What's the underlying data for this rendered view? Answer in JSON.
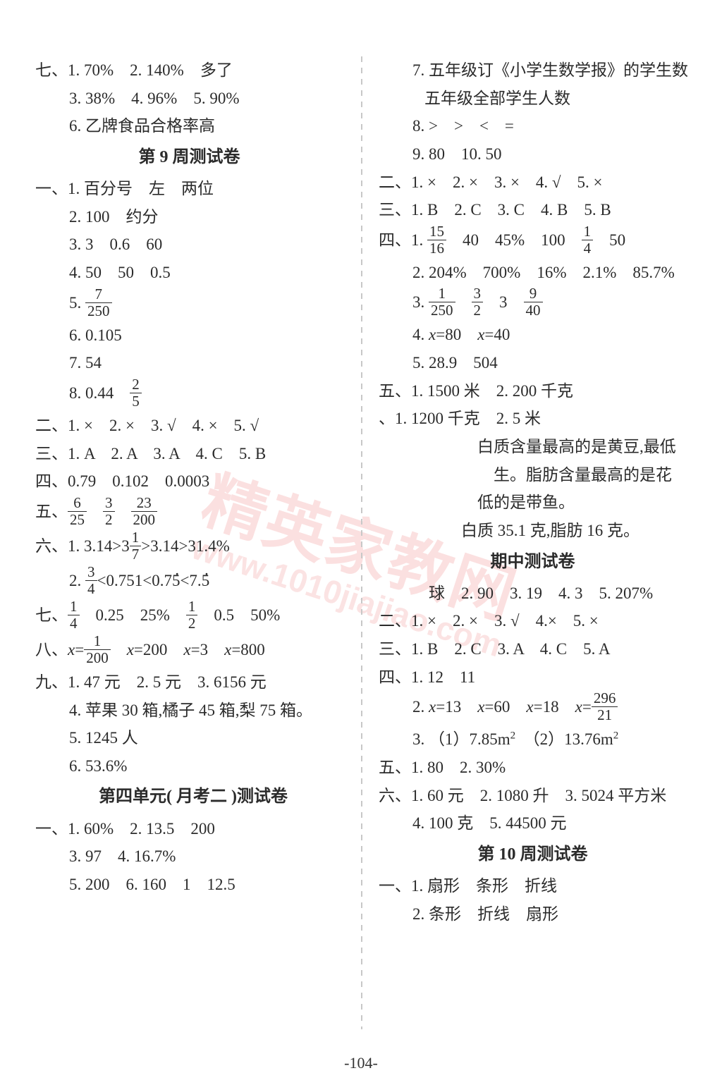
{
  "page_number": "-104-",
  "watermark_main": "精英家教网",
  "watermark_sub": "www.1010jiajiao.com",
  "left": {
    "lines": [
      {
        "cls": "indent0",
        "html": "七、1. 70%　2. 140%　多了"
      },
      {
        "cls": "indent1",
        "html": "3. 38%　4. 96%　5. 90%"
      },
      {
        "cls": "indent1",
        "html": "6. 乙牌食品合格率高"
      },
      {
        "cls": "heading",
        "html": "第 9 周测试卷"
      },
      {
        "cls": "indent0",
        "html": "一、1. 百分号　左　两位"
      },
      {
        "cls": "indent1",
        "html": "2. 100　约分"
      },
      {
        "cls": "indent1",
        "html": "3. 3　0.6　60"
      },
      {
        "cls": "indent1",
        "html": "4. 50　50　0.5"
      },
      {
        "cls": "indent1",
        "html": "5. <span class='frac'><span class='num'>7</span><span class='den'>250</span></span>"
      },
      {
        "cls": "indent1",
        "html": "6. 0.105"
      },
      {
        "cls": "indent1",
        "html": "7. 54"
      },
      {
        "cls": "indent1",
        "html": "8. 0.44　<span class='frac'><span class='num'>2</span><span class='den'>5</span></span>"
      },
      {
        "cls": "indent0",
        "html": "二、1. ×　2. ×　3. √　4. ×　5. √"
      },
      {
        "cls": "indent0",
        "html": "三、1. A　2. A　3. A　4. C　5. B"
      },
      {
        "cls": "indent0",
        "html": "四、0.79　0.102　0.0003"
      },
      {
        "cls": "indent0",
        "html": "五、<span class='frac'><span class='num'>6</span><span class='den'>25</span></span>　<span class='frac'><span class='num'>3</span><span class='den'>2</span></span>　<span class='frac'><span class='num'>23</span><span class='den'>200</span></span>"
      },
      {
        "cls": "indent0",
        "html": "六、1. 3.14&gt;3<span class='frac'><span class='num'>1</span><span class='den'>7</span></span>&gt;3.14&gt;31.4%"
      },
      {
        "cls": "indent1",
        "html": "2. <span class='frac'><span class='num'>3</span><span class='den'>4</span></span>&lt;0.751&lt;0.7<span class='dotover'>5</span>&lt;7.<span class='dotover'>5</span>"
      },
      {
        "cls": "indent0",
        "html": "七、<span class='frac'><span class='num'>1</span><span class='den'>4</span></span>　0.25　25%　<span class='frac'><span class='num'>1</span><span class='den'>2</span></span>　0.5　50%"
      },
      {
        "cls": "indent0",
        "html": "八、<i>x</i>=<span class='frac'><span class='num'>1</span><span class='den'>200</span></span>　<i>x</i>=200　<i>x</i>=3　<i>x</i>=800"
      },
      {
        "cls": "indent0",
        "html": "九、1. 47 元　2. 5 元　3. 6156 元"
      },
      {
        "cls": "indent1",
        "html": "4. 苹果 30 箱,橘子 45 箱,梨 75 箱。"
      },
      {
        "cls": "indent1",
        "html": "5. 1245 人"
      },
      {
        "cls": "indent1",
        "html": "6. 53.6%"
      },
      {
        "cls": "heading heading-left",
        "html": "第四单元( 月考二 )测试卷"
      },
      {
        "cls": "indent0",
        "html": "一、1. 60%　2. 13.5　200"
      },
      {
        "cls": "indent1",
        "html": "3. 97　4. 16.7%"
      },
      {
        "cls": "indent1",
        "html": "5. 200　6. 160　1　12.5"
      }
    ]
  },
  "right": {
    "lines": [
      {
        "cls": "indent1",
        "html": "7. 五年级订《小学生数学报》的学生数"
      },
      {
        "cls": "indent2",
        "html": "五年级全部学生人数"
      },
      {
        "cls": "indent1",
        "html": "8. &gt;　&gt;　&lt;　="
      },
      {
        "cls": "indent1",
        "html": "9. 80　10. 50"
      },
      {
        "cls": "indent0",
        "html": "二、1. ×　2. ×　3. ×　4. √　5. ×"
      },
      {
        "cls": "indent0",
        "html": "三、1. B　2. C　3. C　4. B　5. B"
      },
      {
        "cls": "indent0",
        "html": "四、1. <span class='frac'><span class='num'>15</span><span class='den'>16</span></span>　40　45%　100　<span class='frac'><span class='num'>1</span><span class='den'>4</span></span>　50"
      },
      {
        "cls": "indent1",
        "html": "2. 204%　700%　16%　2.1%　85.7%"
      },
      {
        "cls": "indent1",
        "html": "3. <span class='frac'><span class='num'>1</span><span class='den'>250</span></span>　<span class='frac'><span class='num'>3</span><span class='den'>2</span></span>　3　<span class='frac'><span class='num'>9</span><span class='den'>40</span></span>"
      },
      {
        "cls": "indent1",
        "html": "4. <i>x</i>=80　<i>x</i>=40"
      },
      {
        "cls": "indent1",
        "html": "5. 28.9　504"
      },
      {
        "cls": "indent0",
        "html": "五、1. 1500 米　2. 200 千克"
      },
      {
        "cls": "indent0",
        "html": "、1. 1200 千克　2. 5 米"
      },
      {
        "cls": "indent1",
        "html": "　　　　白质含量最高的是黄豆,最低"
      },
      {
        "cls": "indent1",
        "html": "　　　　　生。脂肪含量最高的是花"
      },
      {
        "cls": "indent1",
        "html": "　　　　低的是带鱼。"
      },
      {
        "cls": "indent1",
        "html": "　　　白质 35.1 克,脂肪 16 克。"
      },
      {
        "cls": "heading",
        "html": "期中测试卷"
      },
      {
        "cls": "indent1",
        "html": "　球　2. 90　3. 19　4. 3　5. 207%"
      },
      {
        "cls": "indent0",
        "html": "二、1. ×　2. ×　3. √　4.×　5. ×"
      },
      {
        "cls": "indent0",
        "html": "三、1. B　2. C　3. A　4. C　5. A"
      },
      {
        "cls": "indent0",
        "html": "四、1. 12　11"
      },
      {
        "cls": "indent1",
        "html": "2. <i>x</i>=13　<i>x</i>=60　<i>x</i>=18　<i>x</i>=<span class='frac'><span class='num'>296</span><span class='den'>21</span></span>"
      },
      {
        "cls": "indent1",
        "html": "3. （1）7.85m<span class='sup'>2</span>　（2）13.76m<span class='sup'>2</span>"
      },
      {
        "cls": "indent0",
        "html": "五、1. 80　2. 30%"
      },
      {
        "cls": "indent0",
        "html": "六、1. 60 元　2. 1080 升　3. 5024 平方米"
      },
      {
        "cls": "indent1",
        "html": "4. 100 克　5. 44500 元"
      },
      {
        "cls": "heading",
        "html": "第 10 周测试卷"
      },
      {
        "cls": "indent0",
        "html": "一、1. 扇形　条形　折线"
      },
      {
        "cls": "indent1",
        "html": "2. 条形　折线　扇形"
      }
    ]
  }
}
